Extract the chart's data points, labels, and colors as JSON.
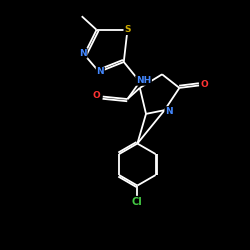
{
  "bg_color": "#000000",
  "bond_color": "#ffffff",
  "atom_colors": {
    "N": "#4488ff",
    "S": "#ccaa00",
    "O": "#ff3333",
    "Cl": "#44cc44",
    "C": "#ffffff",
    "H": "#ffffff"
  },
  "figsize": [
    2.5,
    2.5
  ],
  "dpi": 100
}
